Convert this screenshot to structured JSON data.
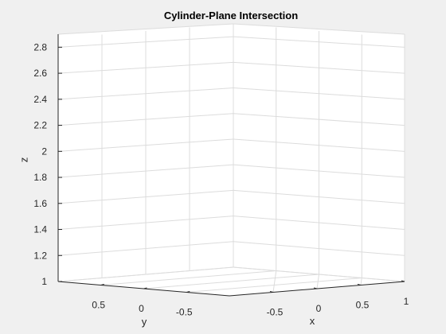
{
  "chart_data": {
    "type": "surface3d",
    "title": "Cylinder-Plane Intersection",
    "xlabel": "x",
    "ylabel": "y",
    "zlabel": "z",
    "xlim": [
      -1,
      1
    ],
    "ylim": [
      -1,
      1
    ],
    "zlim": [
      1,
      2.9
    ],
    "xticks": [
      "-0.5",
      "0",
      "0.5",
      "1"
    ],
    "yticks": [
      "0.5",
      "0",
      "-0.5"
    ],
    "zticks": [
      "1",
      "1.2",
      "1.4",
      "1.6",
      "1.8",
      "2",
      "2.2",
      "2.4",
      "2.6",
      "2.8"
    ],
    "grid": true,
    "background": "#ffffff",
    "figure_color": "#f0f0f0",
    "grid_color": "#dcdcdc",
    "axis_color": "#262626"
  }
}
